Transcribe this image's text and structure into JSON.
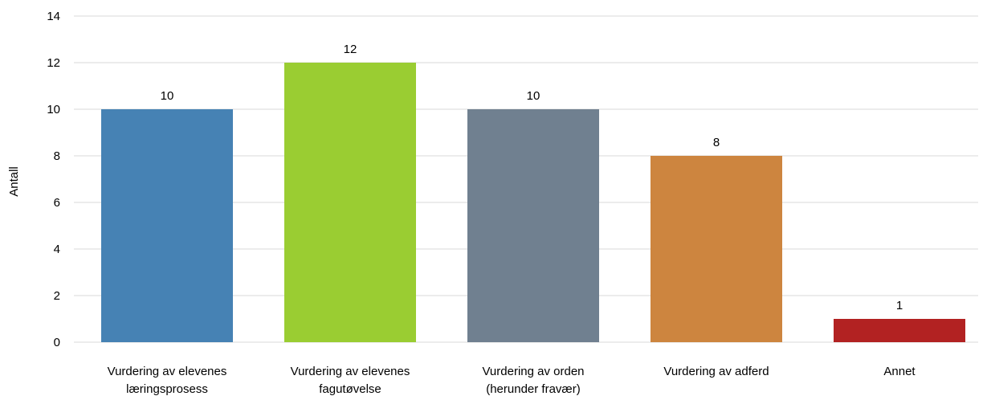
{
  "chart_data": {
    "type": "bar",
    "categories": [
      [
        "Vurdering av elevenes",
        "læringsprosess"
      ],
      [
        "Vurdering av elevenes",
        "fagutøvelse"
      ],
      [
        "Vurdering av orden",
        "(herunder fravær)"
      ],
      [
        "Vurdering av adferd"
      ],
      [
        "Annet"
      ]
    ],
    "values": [
      10,
      12,
      10,
      8,
      1
    ],
    "colors": [
      "#4682B4",
      "#9ACD32",
      "#708090",
      "#CD853F",
      "#B22222"
    ],
    "ylabel": "Antall",
    "ylim": [
      0,
      14
    ],
    "yticks": [
      0,
      2,
      4,
      6,
      8,
      10,
      12,
      14
    ],
    "grid": true,
    "gridColor": "#d9d9d9",
    "data_labels": [
      "10",
      "12",
      "10",
      "8",
      "1"
    ]
  }
}
